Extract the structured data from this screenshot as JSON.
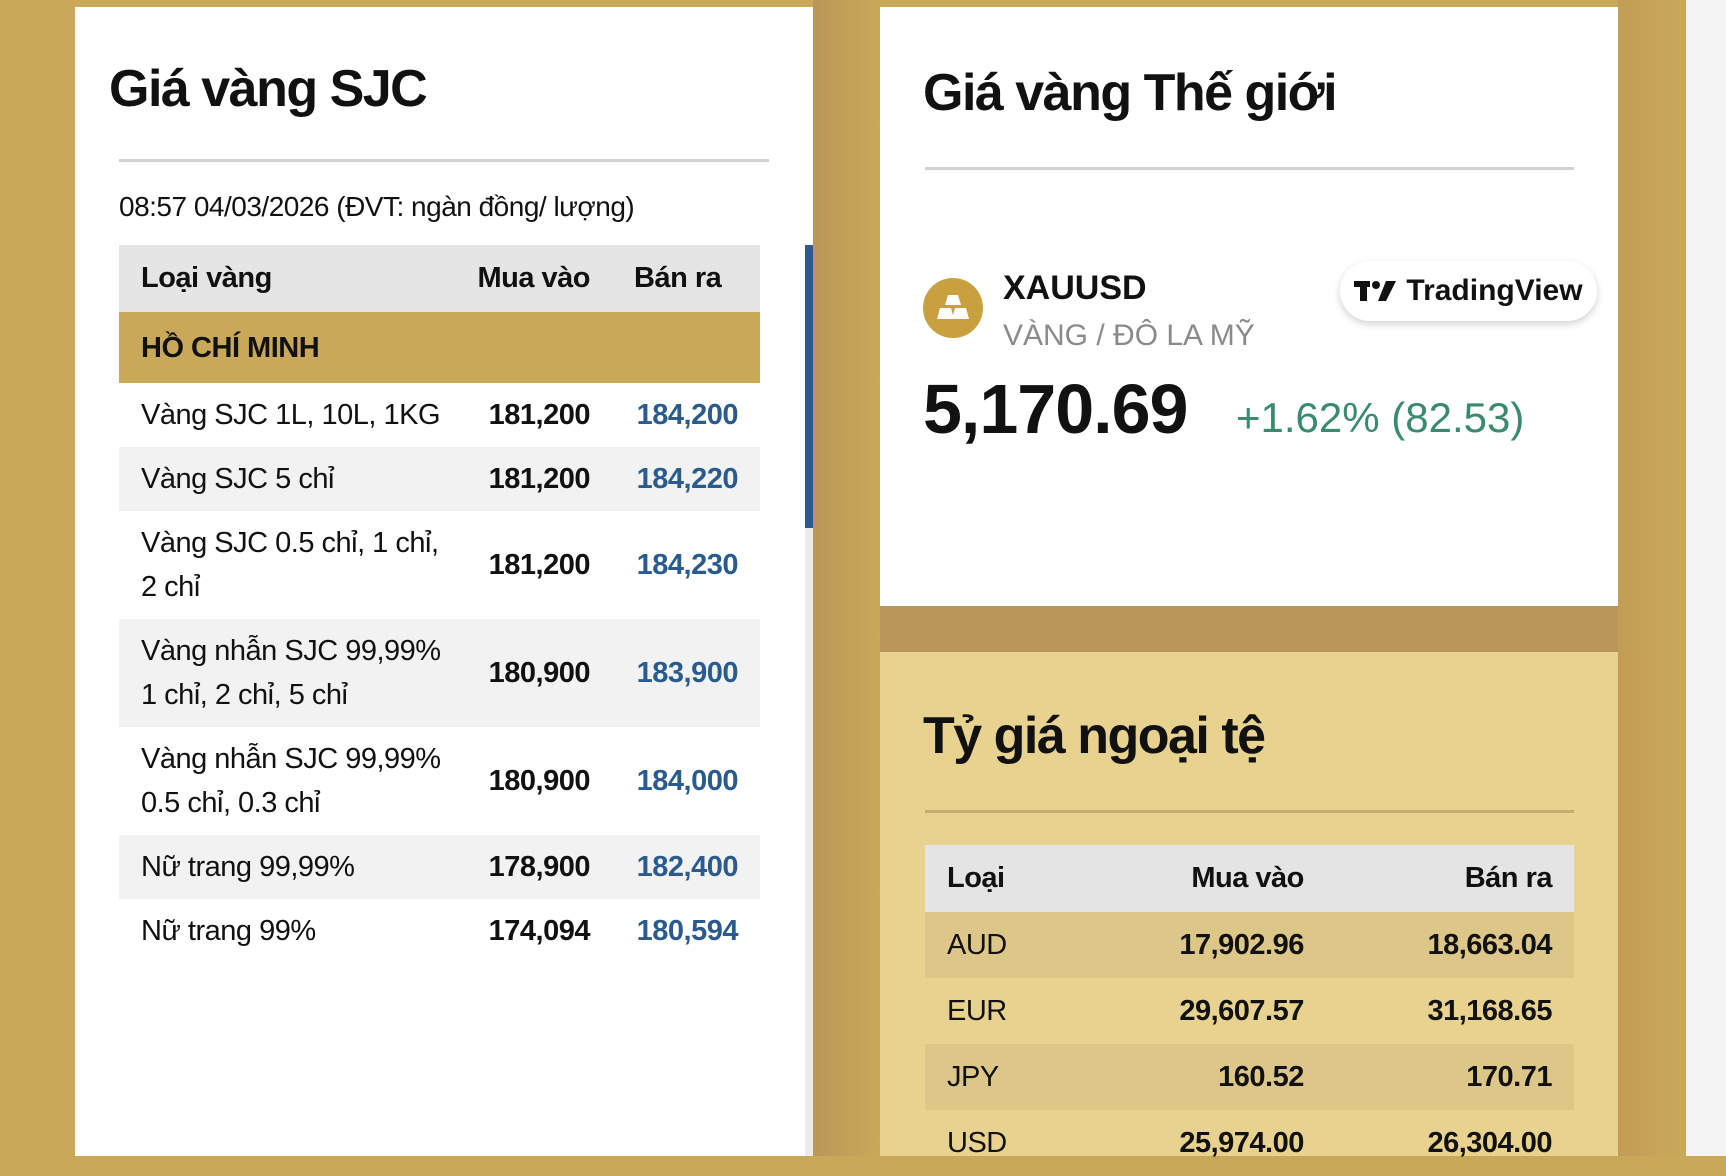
{
  "sjc": {
    "title": "Giá vàng SJC",
    "subtitle": "08:57 04/03/2026 (ĐVT: ngàn đồng/ lượng)",
    "headers": [
      "Loại vàng",
      "Mua vào",
      "Bán ra"
    ],
    "region": "HỒ CHÍ MINH",
    "rows": [
      [
        "Vàng SJC 1L, 10L, 1KG",
        "181,200",
        "184,200"
      ],
      [
        "Vàng SJC 5 chỉ",
        "181,200",
        "184,220"
      ],
      [
        "Vàng SJC 0.5 chỉ, 1 chỉ, 2 chỉ",
        "181,200",
        "184,230"
      ],
      [
        "Vàng nhẫn SJC 99,99% 1 chỉ, 2 chỉ, 5 chỉ",
        "180,900",
        "183,900"
      ],
      [
        "Vàng nhẫn SJC 99,99% 0.5 chỉ, 0.3 chỉ",
        "180,900",
        "184,000"
      ],
      [
        "Nữ trang 99,99%",
        "178,900",
        "182,400"
      ],
      [
        "Nữ trang 99%",
        "174,094",
        "180,594"
      ]
    ]
  },
  "world": {
    "title": "Giá vàng Thế giới",
    "symbol": "XAUUSD",
    "description": "VÀNG / ĐÔ LA MỸ",
    "price": "5,170.69",
    "change": "+1.62% (82.53)",
    "brand": "TradingView",
    "icon": "gold-bars-icon"
  },
  "fx": {
    "title": "Tỷ giá ngoại tệ",
    "headers": [
      "Loại",
      "Mua vào",
      "Bán ra"
    ],
    "rows": [
      [
        "AUD",
        "17,902.96",
        "18,663.04"
      ],
      [
        "EUR",
        "29,607.57",
        "31,168.65"
      ],
      [
        "JPY",
        "160.52",
        "170.71"
      ],
      [
        "USD",
        "25,974.00",
        "26,304.00"
      ]
    ]
  },
  "colors": {
    "gold": "#c9a85a",
    "sell_price": "#2a5b8e",
    "change_positive": "#3a8a6e"
  }
}
